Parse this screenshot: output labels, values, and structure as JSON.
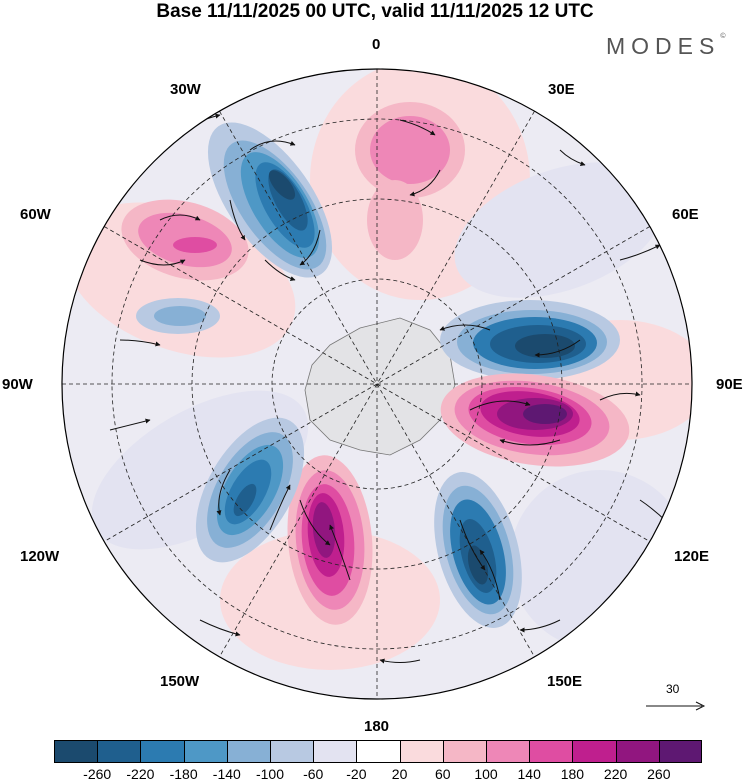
{
  "title": "Base 11/11/2025 00 UTC, valid 11/11/2025 12 UTC",
  "brand": {
    "name": "MODES",
    "mark": "©"
  },
  "longitude_labels": {
    "n0": "0",
    "n30e": "30E",
    "n60e": "60E",
    "n90e": "90E",
    "n120e": "120E",
    "n150e": "150E",
    "n180": "180",
    "n150w": "150W",
    "n120w": "120W",
    "n90w": "90W",
    "n60w": "60W",
    "n30w": "30W"
  },
  "reference_vector": {
    "label": "30"
  },
  "colorbar": {
    "colors": [
      "#1b4a6e",
      "#1f5f8e",
      "#2c7bb1",
      "#4e98c6",
      "#87b0d5",
      "#b8c9e2",
      "#e3e3f1",
      "#ffffff",
      "#fadbdd",
      "#f5b7c6",
      "#ee87b7",
      "#df4da2",
      "#bf1f8e",
      "#91167f",
      "#5e1872"
    ],
    "labels": [
      "-260",
      "-220",
      "-180",
      "-140",
      "-100",
      "-60",
      "-20",
      "20",
      "60",
      "100",
      "140",
      "180",
      "220",
      "260"
    ]
  },
  "map": {
    "background": "#f1f1f4",
    "antarctica": "#e3e3e6",
    "blobs": [
      {
        "name": "trough-30w",
        "color": "#2c7bb1"
      },
      {
        "name": "ridge-60w",
        "color": "#ee87b7"
      },
      {
        "name": "ridge-0",
        "color": "#ee87b7"
      },
      {
        "name": "trough-90e",
        "color": "#1f5f8e"
      },
      {
        "name": "ridge-90e",
        "color": "#91167f"
      },
      {
        "name": "trough-150e",
        "color": "#1f5f8e"
      },
      {
        "name": "ridge-170w",
        "color": "#bf1f8e"
      },
      {
        "name": "trough-130w",
        "color": "#2c7bb1"
      },
      {
        "name": "trough-75w",
        "color": "#87b0d5"
      }
    ]
  }
}
